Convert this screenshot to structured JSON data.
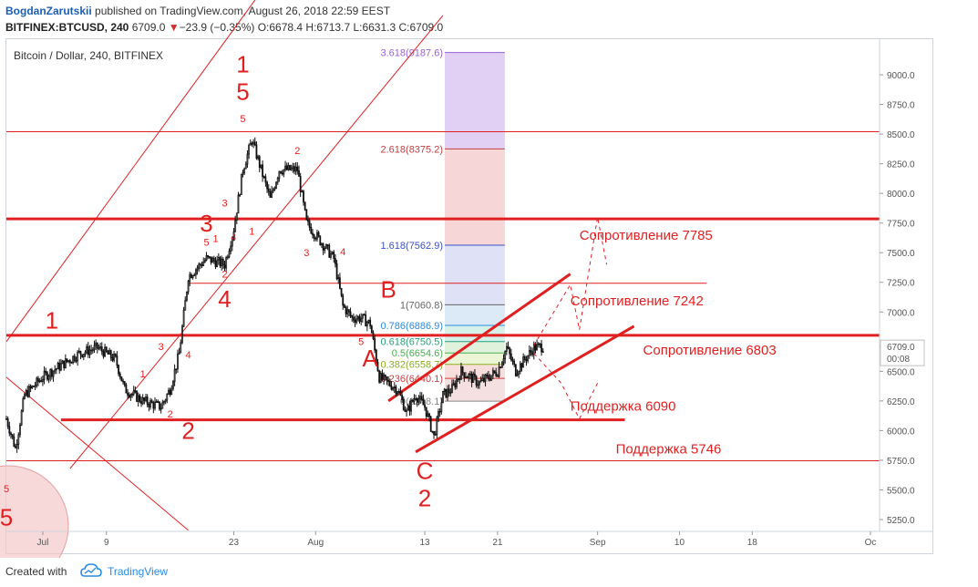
{
  "header": {
    "author": "BogdanZarutskii",
    "published": " published on TradingView.com, August 26, 2018 22:59 EEST",
    "symbol": "BITFINEX:BTCUSD, 240",
    "last": " 6709.0",
    "change_arrow": "▼",
    "change": "−23.9 (−0.35%)",
    "ohlc": " O:6678.4 H:6713.7 L:6631.3 C:6709.0"
  },
  "footer": {
    "created": "Created with",
    "brand": "TradingView"
  },
  "colors": {
    "red": "#e02020",
    "candle": "#111111",
    "ray": "#e87070",
    "axis_text": "#555555"
  },
  "chart_data": {
    "type": "candlestick",
    "title": "Bitcoin / Dollar, 240, BITFINEX",
    "ylim": [
      5150,
      9300
    ],
    "xlim": [
      "2018-06-28",
      "2018-10-02"
    ],
    "y_ticks": [
      5250,
      5500,
      5750,
      6000,
      6250,
      6500,
      6709,
      7000,
      7250,
      7500,
      7750,
      8000,
      8250,
      8500,
      8750,
      9000
    ],
    "y_tick_labels": [
      "5250.0",
      "5500.0",
      "5750.0",
      "6000.0",
      "6250.0",
      "6500.0",
      "6709.0",
      "7000.0",
      "7250.0",
      "7500.0",
      "7750.0",
      "8000.0",
      "8250.0",
      "8500.0",
      "8750.0",
      "9000.0"
    ],
    "current_price": 6709.0,
    "current_time": "00:08",
    "x_ticks": [
      {
        "date": "2018-07-02",
        "label": "Jul"
      },
      {
        "date": "2018-07-09",
        "label": "9"
      },
      {
        "date": "2018-07-23",
        "label": "23"
      },
      {
        "date": "2018-08-01",
        "label": "Aug"
      },
      {
        "date": "2018-08-13",
        "label": "13"
      },
      {
        "date": "2018-08-21",
        "label": "21"
      },
      {
        "date": "2018-09-01",
        "label": "Sep"
      },
      {
        "date": "2018-09-10",
        "label": "10"
      },
      {
        "date": "2018-09-18",
        "label": "18"
      },
      {
        "date": "2018-10-01",
        "label": "Oc"
      }
    ],
    "price_path": [
      {
        "x": "2018-06-28",
        "y": 6100
      },
      {
        "x": "2018-06-29",
        "y": 5850
      },
      {
        "x": "2018-06-30",
        "y": 6300
      },
      {
        "x": "2018-07-02",
        "y": 6450
      },
      {
        "x": "2018-07-04",
        "y": 6550
      },
      {
        "x": "2018-07-06",
        "y": 6650
      },
      {
        "x": "2018-07-08",
        "y": 6700
      },
      {
        "x": "2018-07-10",
        "y": 6600
      },
      {
        "x": "2018-07-11",
        "y": 6350
      },
      {
        "x": "2018-07-13",
        "y": 6250
      },
      {
        "x": "2018-07-15",
        "y": 6200
      },
      {
        "x": "2018-07-16",
        "y": 6350
      },
      {
        "x": "2018-07-17",
        "y": 6650
      },
      {
        "x": "2018-07-18",
        "y": 7300
      },
      {
        "x": "2018-07-20",
        "y": 7450
      },
      {
        "x": "2018-07-22",
        "y": 7400
      },
      {
        "x": "2018-07-23",
        "y": 7700
      },
      {
        "x": "2018-07-24",
        "y": 8200
      },
      {
        "x": "2018-07-25",
        "y": 8450
      },
      {
        "x": "2018-07-26",
        "y": 8200
      },
      {
        "x": "2018-07-27",
        "y": 7950
      },
      {
        "x": "2018-07-28",
        "y": 8200
      },
      {
        "x": "2018-07-30",
        "y": 8200
      },
      {
        "x": "2018-07-31",
        "y": 7750
      },
      {
        "x": "2018-08-02",
        "y": 7550
      },
      {
        "x": "2018-08-03",
        "y": 7450
      },
      {
        "x": "2018-08-04",
        "y": 7050
      },
      {
        "x": "2018-08-05",
        "y": 6950
      },
      {
        "x": "2018-08-06",
        "y": 6950
      },
      {
        "x": "2018-08-07",
        "y": 6900
      },
      {
        "x": "2018-08-08",
        "y": 6450
      },
      {
        "x": "2018-08-09",
        "y": 6400
      },
      {
        "x": "2018-08-10",
        "y": 6350
      },
      {
        "x": "2018-08-11",
        "y": 6150
      },
      {
        "x": "2018-08-12",
        "y": 6300
      },
      {
        "x": "2018-08-13",
        "y": 6200
      },
      {
        "x": "2018-08-14",
        "y": 5950
      },
      {
        "x": "2018-08-15",
        "y": 6300
      },
      {
        "x": "2018-08-16",
        "y": 6350
      },
      {
        "x": "2018-08-17",
        "y": 6500
      },
      {
        "x": "2018-08-18",
        "y": 6450
      },
      {
        "x": "2018-08-19",
        "y": 6400
      },
      {
        "x": "2018-08-20",
        "y": 6450
      },
      {
        "x": "2018-08-21",
        "y": 6500
      },
      {
        "x": "2018-08-22",
        "y": 6700
      },
      {
        "x": "2018-08-23",
        "y": 6500
      },
      {
        "x": "2018-08-24",
        "y": 6600
      },
      {
        "x": "2018-08-25",
        "y": 6700
      },
      {
        "x": "2018-08-26",
        "y": 6709
      }
    ],
    "horizontal_levels": [
      {
        "name": "Сопротивление 7785",
        "y": 7785,
        "bold": true
      },
      {
        "name": "Сопротивление 7242",
        "y": 7242,
        "bold": false
      },
      {
        "name": "Сопротивление 6803",
        "y": 6803,
        "bold": true
      },
      {
        "name": "Поддержка 6090",
        "y": 6090,
        "bold": true
      },
      {
        "name": "Поддержка 5746",
        "y": 5746,
        "bold": false
      },
      {
        "name": "",
        "y": 8520,
        "bold": false
      }
    ],
    "fib_levels": [
      {
        "label": "3.618(9187.6)",
        "y": 9187.6,
        "color": "#9c5fd6"
      },
      {
        "label": "2.618(8375.2)",
        "y": 8375.2,
        "color": "#c24040"
      },
      {
        "label": "1.618(7562.9)",
        "y": 7562.9,
        "color": "#3a52c8"
      },
      {
        "label": "1(7060.8)",
        "y": 7060.8,
        "color": "#666666"
      },
      {
        "label": "0.786(6886.9)",
        "y": 6886.9,
        "color": "#2a8be0"
      },
      {
        "label": "0.618(6750.5)",
        "y": 6750.5,
        "color": "#23a17a"
      },
      {
        "label": "0.5(6654.6)",
        "y": 6654.6,
        "color": "#4caf50"
      },
      {
        "label": "0.382(6558.7)",
        "y": 6558.7,
        "color": "#8bb020"
      },
      {
        "label": "0.236(6440.1)",
        "y": 6440.1,
        "color": "#d04040"
      },
      {
        "label": "0(6248.1)",
        "y": 6248.1,
        "color": "#888888"
      }
    ],
    "wave_labels": [
      {
        "text": "1",
        "date": "2018-07-03",
        "y": 6860,
        "size": "big"
      },
      {
        "text": "2",
        "date": "2018-07-18",
        "y": 5930,
        "size": "big"
      },
      {
        "text": "3",
        "date": "2018-07-20",
        "y": 7680,
        "size": "big"
      },
      {
        "text": "4",
        "date": "2018-07-22",
        "y": 7040,
        "size": "big"
      },
      {
        "text": "1",
        "date": "2018-07-24",
        "y": 9020,
        "size": "big"
      },
      {
        "text": "5",
        "date": "2018-07-24",
        "y": 8790,
        "size": "big"
      },
      {
        "text": "A",
        "date": "2018-08-07",
        "y": 6540,
        "size": "big"
      },
      {
        "text": "B",
        "date": "2018-08-09",
        "y": 7120,
        "size": "big"
      },
      {
        "text": "C",
        "date": "2018-08-13",
        "y": 5590,
        "size": "big"
      },
      {
        "text": "2",
        "date": "2018-08-13",
        "y": 5360,
        "size": "big"
      },
      {
        "text": "5",
        "date": "2018-06-28",
        "y": 5200,
        "size": "big"
      },
      {
        "text": "5",
        "date": "2018-06-28",
        "y": 5480,
        "size": "small"
      },
      {
        "text": "1",
        "date": "2018-07-13",
        "y": 6450,
        "size": "small"
      },
      {
        "text": "2",
        "date": "2018-07-16",
        "y": 6110,
        "size": "small"
      },
      {
        "text": "3",
        "date": "2018-07-15",
        "y": 6680,
        "size": "small"
      },
      {
        "text": "4",
        "date": "2018-07-18",
        "y": 6610,
        "size": "small"
      },
      {
        "text": "5",
        "date": "2018-07-20",
        "y": 7560,
        "size": "small"
      },
      {
        "text": "1",
        "date": "2018-07-21",
        "y": 7590,
        "size": "small"
      },
      {
        "text": "2",
        "date": "2018-07-22",
        "y": 7290,
        "size": "small"
      },
      {
        "text": "3",
        "date": "2018-07-22",
        "y": 7890,
        "size": "small"
      },
      {
        "text": "4",
        "date": "2018-07-23",
        "y": 7600,
        "size": "small"
      },
      {
        "text": "1",
        "date": "2018-07-25",
        "y": 7650,
        "size": "small"
      },
      {
        "text": "5",
        "date": "2018-07-24",
        "y": 8600,
        "size": "small"
      },
      {
        "text": "2",
        "date": "2018-07-30",
        "y": 8330,
        "size": "small"
      },
      {
        "text": "3",
        "date": "2018-07-31",
        "y": 7470,
        "size": "small"
      },
      {
        "text": "4",
        "date": "2018-08-04",
        "y": 7480,
        "size": "small"
      },
      {
        "text": "5",
        "date": "2018-08-06",
        "y": 6720,
        "size": "small"
      }
    ],
    "channel_lines": [
      {
        "from": {
          "x": "2018-06-28",
          "y": 6750
        },
        "to": {
          "x": "2018-07-26",
          "y": 9700
        }
      },
      {
        "from": {
          "x": "2018-07-05",
          "y": 5680
        },
        "to": {
          "x": "2018-08-15",
          "y": 9500
        }
      },
      {
        "from": {
          "x": "2018-06-28",
          "y": 6450
        },
        "to": {
          "x": "2018-07-18",
          "y": 5160
        }
      }
    ],
    "triangle_lines": [
      {
        "from": {
          "x": "2018-08-09",
          "y": 6250
        },
        "to": {
          "x": "2018-08-29",
          "y": 7320
        },
        "bold": true
      },
      {
        "from": {
          "x": "2018-08-12",
          "y": 5820
        },
        "to": {
          "x": "2018-09-05",
          "y": 6880
        },
        "bold": true
      }
    ],
    "projection_path": [
      {
        "x": "2018-08-25",
        "y": 6720
      },
      {
        "x": "2018-08-29",
        "y": 7230
      },
      {
        "x": "2018-08-30",
        "y": 6850
      },
      {
        "x": "2018-09-01",
        "y": 7800
      },
      {
        "x": "2018-09-02",
        "y": 7400
      }
    ],
    "projection_path_down": [
      {
        "x": "2018-08-25",
        "y": 6650
      },
      {
        "x": "2018-08-28",
        "y": 6400
      },
      {
        "x": "2018-08-30",
        "y": 6100
      },
      {
        "x": "2018-09-01",
        "y": 6400
      }
    ]
  }
}
